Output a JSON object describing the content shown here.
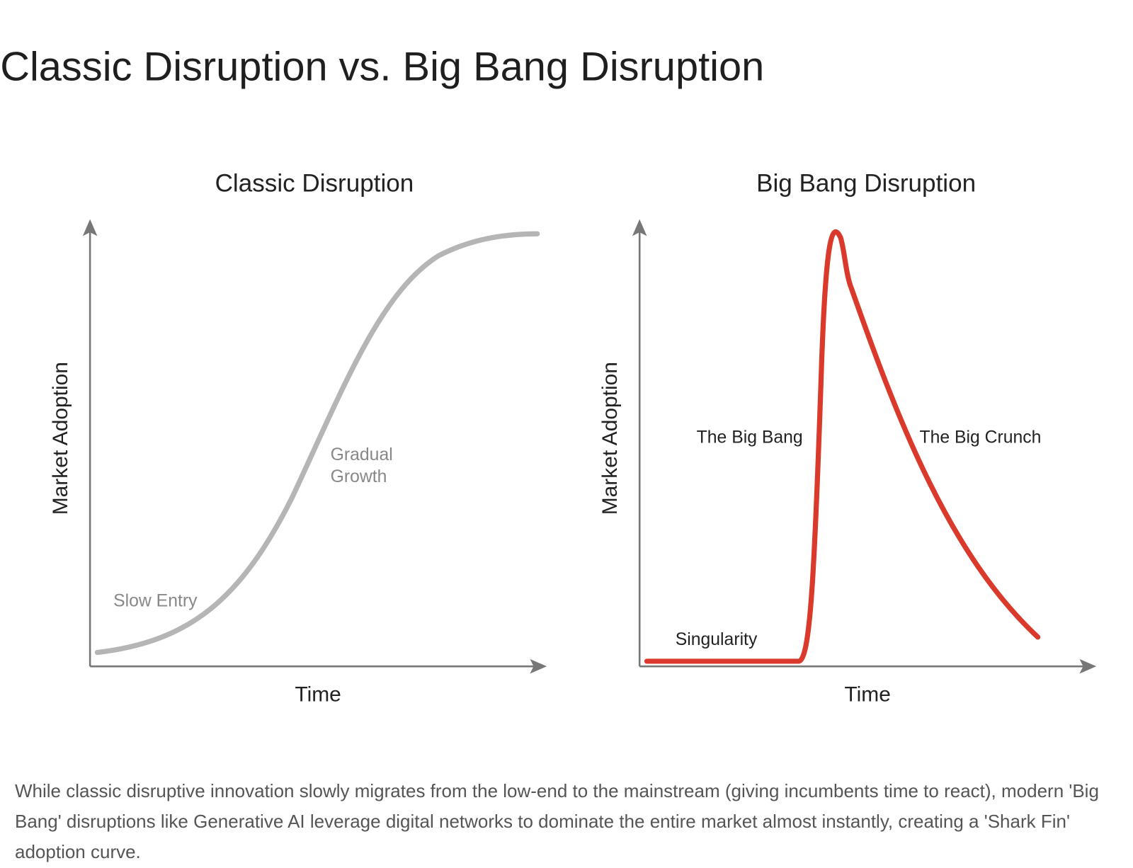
{
  "title": "Classic Disruption vs. Big Bang Disruption",
  "panels": [
    {
      "title": "Classic Disruption",
      "y_label": "Market Adoption",
      "x_label": "Time",
      "annotations": [
        "Slow Entry",
        "Gradual",
        "Growth"
      ]
    },
    {
      "title": "Big Bang Disruption",
      "y_label": "Market Adoption",
      "x_label": "Time",
      "annotations": [
        "Singularity",
        "The Big Bang",
        "The Big Crunch"
      ]
    }
  ],
  "caption": "While classic disruptive innovation slowly migrates from the low-end to the mainstream (giving incumbents time to react), modern 'Big Bang' disruptions like Generative AI leverage digital networks to dominate the entire market almost instantly, creating a 'Shark Fin' adoption curve."
}
